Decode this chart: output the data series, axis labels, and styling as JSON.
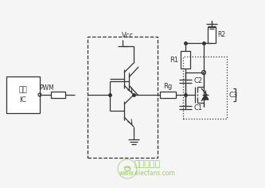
{
  "bg_color": "#f5f5f5",
  "line_color": "#333333",
  "labels": {
    "power_line1": "电源",
    "power_line2": "IC",
    "pwm": "PWM",
    "vcc": "Vcc",
    "rg": "Rg",
    "c1": "C1",
    "c2": "C2",
    "c3": "C3",
    "r1": "R1",
    "r2": "R2"
  },
  "watermark_text": "www.elecfans.com",
  "watermark_logo": "电子发烧友",
  "watermark_color": "#88cc44"
}
